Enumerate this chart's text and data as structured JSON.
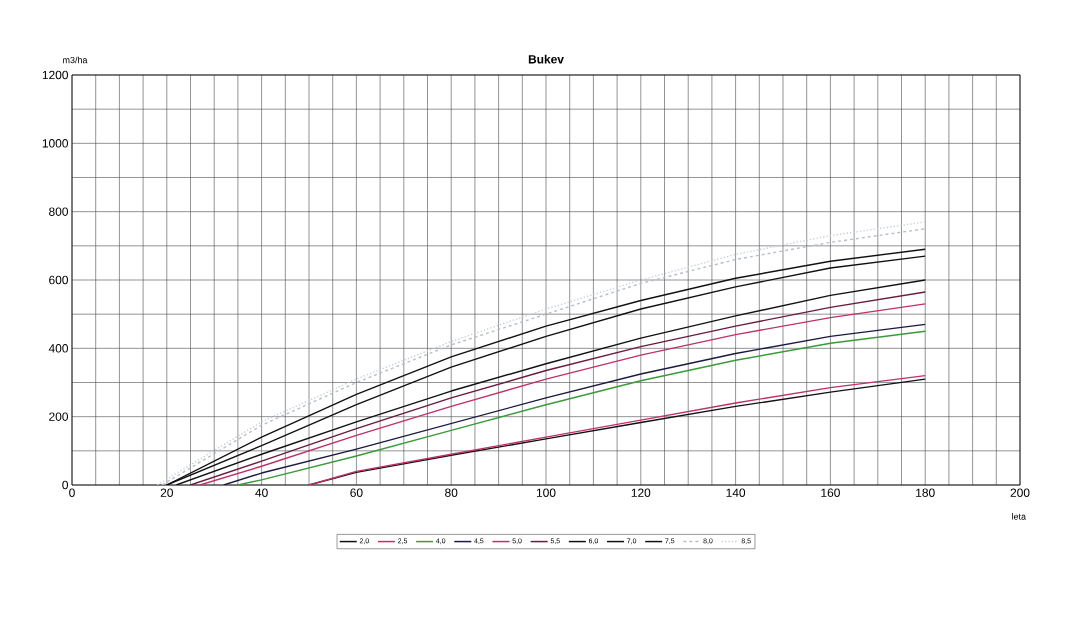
{
  "chart_data": {
    "type": "line",
    "title": "Bukev",
    "ylabel": "m3/ha",
    "xlabel": "leta",
    "xlim": [
      0,
      200
    ],
    "ylim": [
      0,
      1200
    ],
    "xticks": [
      0,
      20,
      40,
      60,
      80,
      100,
      120,
      140,
      160,
      180,
      200
    ],
    "yticks": [
      0,
      200,
      400,
      600,
      800,
      1000,
      1200
    ],
    "grid": true,
    "legend": "bottom",
    "marker": "none",
    "line_style": "solid",
    "series": [
      {
        "name": "2,0",
        "color": "#111111",
        "x": [
          50,
          60,
          80,
          100,
          120,
          140,
          160,
          180
        ],
        "values": [
          0,
          37,
          87,
          135,
          183,
          230,
          272,
          310
        ]
      },
      {
        "name": "2,5",
        "color": "#c0306a",
        "x": [
          50,
          60,
          80,
          100,
          120,
          140,
          160,
          180
        ],
        "values": [
          0,
          40,
          90,
          140,
          190,
          240,
          285,
          320
        ]
      },
      {
        "name": "4,0",
        "color": "#3a9a3a",
        "x": [
          35,
          40,
          60,
          80,
          100,
          120,
          140,
          160,
          180
        ],
        "values": [
          0,
          15,
          85,
          160,
          235,
          305,
          365,
          415,
          450
        ]
      },
      {
        "name": "4,5",
        "color": "#1a1a40",
        "x": [
          32,
          40,
          60,
          80,
          100,
          120,
          140,
          160,
          180
        ],
        "values": [
          0,
          35,
          105,
          180,
          255,
          325,
          385,
          435,
          470
        ]
      },
      {
        "name": "5,0",
        "color": "#c0306a",
        "x": [
          27,
          40,
          60,
          80,
          100,
          120,
          140,
          160,
          180
        ],
        "values": [
          0,
          55,
          145,
          230,
          310,
          380,
          440,
          490,
          530
        ]
      },
      {
        "name": "5,5",
        "color": "#6a1a40",
        "x": [
          25,
          40,
          60,
          80,
          100,
          120,
          140,
          160,
          180
        ],
        "values": [
          0,
          70,
          165,
          255,
          335,
          405,
          465,
          520,
          565
        ]
      },
      {
        "name": "6,0",
        "color": "#111111",
        "x": [
          22,
          40,
          60,
          80,
          100,
          120,
          140,
          160,
          180
        ],
        "values": [
          0,
          90,
          185,
          275,
          355,
          430,
          495,
          555,
          600
        ]
      },
      {
        "name": "7,0",
        "color": "#111111",
        "x": [
          20,
          40,
          60,
          80,
          100,
          120,
          140,
          160,
          180
        ],
        "values": [
          0,
          115,
          235,
          345,
          435,
          515,
          580,
          635,
          670
        ]
      },
      {
        "name": "7,5",
        "color": "#111111",
        "x": [
          20,
          40,
          60,
          80,
          100,
          120,
          140,
          160,
          180
        ],
        "values": [
          0,
          140,
          265,
          375,
          465,
          540,
          605,
          655,
          690
        ]
      },
      {
        "name": "8,0",
        "color": "#b8bec8",
        "line_style": "dashed",
        "x": [
          19,
          40,
          60,
          80,
          100,
          120,
          140,
          160,
          180
        ],
        "values": [
          0,
          175,
          300,
          410,
          500,
          590,
          660,
          710,
          750
        ]
      },
      {
        "name": "8,5",
        "color": "#c8d0dc",
        "line_style": "dotted",
        "x": [
          18,
          40,
          60,
          80,
          100,
          120,
          140,
          160,
          180
        ],
        "values": [
          0,
          185,
          310,
          420,
          515,
          600,
          675,
          730,
          770
        ]
      }
    ]
  }
}
